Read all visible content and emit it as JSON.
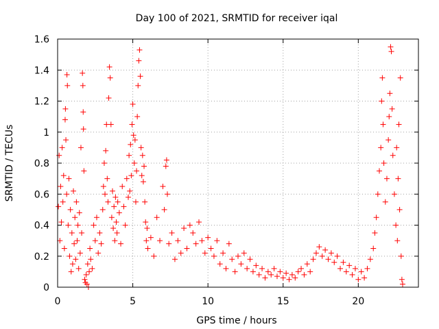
{
  "chart_data": {
    "type": "scatter",
    "title": "Day 100 of 2021, SRMTID for receiver iqal",
    "xlabel": "GPS time / hours",
    "ylabel": "SRMTID / TECUs",
    "xlim": [
      0,
      24
    ],
    "ylim": [
      0,
      1.6
    ],
    "xticks": [
      "0",
      "5",
      "10",
      "15",
      "20"
    ],
    "yticks": [
      "0",
      "0.2",
      "0.4",
      "0.6",
      "0.8",
      "1",
      "1.2",
      "1.4",
      "1.6"
    ],
    "grid": true,
    "marker": "+",
    "color": "#ff0000",
    "series": [
      {
        "name": "SRMTID",
        "points": [
          [
            0.05,
            0.52
          ],
          [
            0.1,
            0.85
          ],
          [
            0.15,
            0.3
          ],
          [
            0.2,
            0.65
          ],
          [
            0.25,
            0.42
          ],
          [
            0.3,
            0.9
          ],
          [
            0.35,
            0.55
          ],
          [
            0.4,
            0.72
          ],
          [
            0.45,
            0.25
          ],
          [
            0.5,
            1.08
          ],
          [
            0.52,
            1.15
          ],
          [
            0.55,
            0.95
          ],
          [
            0.6,
            0.6
          ],
          [
            0.62,
            1.37
          ],
          [
            0.65,
            1.3
          ],
          [
            0.7,
            0.4
          ],
          [
            0.75,
            0.7
          ],
          [
            0.8,
            0.2
          ],
          [
            0.85,
            0.5
          ],
          [
            0.9,
            0.1
          ],
          [
            0.95,
            0.35
          ],
          [
            1.0,
            0.15
          ],
          [
            1.05,
            0.62
          ],
          [
            1.1,
            0.28
          ],
          [
            1.15,
            0.45
          ],
          [
            1.2,
            0.18
          ],
          [
            1.25,
            0.55
          ],
          [
            1.3,
            0.3
          ],
          [
            1.35,
            0.4
          ],
          [
            1.4,
            0.12
          ],
          [
            1.45,
            0.48
          ],
          [
            1.5,
            0.22
          ],
          [
            1.55,
            0.9
          ],
          [
            1.6,
            0.35
          ],
          [
            1.65,
            1.38
          ],
          [
            1.68,
            1.3
          ],
          [
            1.7,
            1.13
          ],
          [
            1.72,
            1.02
          ],
          [
            1.75,
            0.75
          ],
          [
            1.8,
            0.05
          ],
          [
            1.85,
            0.03
          ],
          [
            1.9,
            0.08
          ],
          [
            1.95,
            0.02
          ],
          [
            2.0,
            0.15
          ],
          [
            2.05,
            0.0
          ],
          [
            2.1,
            0.1
          ],
          [
            2.15,
            0.25
          ],
          [
            2.2,
            0.18
          ],
          [
            2.3,
            0.12
          ],
          [
            2.4,
            0.4
          ],
          [
            2.5,
            0.3
          ],
          [
            2.6,
            0.45
          ],
          [
            2.7,
            0.22
          ],
          [
            2.8,
            0.35
          ],
          [
            2.9,
            0.28
          ],
          [
            3.0,
            0.5
          ],
          [
            3.05,
            0.65
          ],
          [
            3.1,
            0.8
          ],
          [
            3.15,
            0.6
          ],
          [
            3.2,
            0.88
          ],
          [
            3.25,
            1.05
          ],
          [
            3.3,
            0.7
          ],
          [
            3.35,
            0.55
          ],
          [
            3.4,
            1.22
          ],
          [
            3.45,
            1.42
          ],
          [
            3.5,
            1.35
          ],
          [
            3.55,
            1.05
          ],
          [
            3.6,
            0.45
          ],
          [
            3.65,
            0.62
          ],
          [
            3.7,
            0.38
          ],
          [
            3.75,
            0.52
          ],
          [
            3.8,
            0.3
          ],
          [
            3.85,
            0.58
          ],
          [
            3.9,
            0.42
          ],
          [
            3.95,
            0.35
          ],
          [
            4.0,
            0.55
          ],
          [
            4.1,
            0.48
          ],
          [
            4.2,
            0.28
          ],
          [
            4.3,
            0.65
          ],
          [
            4.4,
            0.52
          ],
          [
            4.5,
            0.4
          ],
          [
            4.6,
            0.7
          ],
          [
            4.7,
            0.58
          ],
          [
            4.75,
            0.85
          ],
          [
            4.8,
            0.62
          ],
          [
            4.85,
            0.92
          ],
          [
            4.9,
            0.72
          ],
          [
            4.95,
            1.05
          ],
          [
            5.0,
            1.18
          ],
          [
            5.05,
            0.98
          ],
          [
            5.1,
            0.8
          ],
          [
            5.15,
            0.95
          ],
          [
            5.2,
            0.55
          ],
          [
            5.25,
            0.75
          ],
          [
            5.3,
            1.1
          ],
          [
            5.35,
            1.3
          ],
          [
            5.4,
            1.46
          ],
          [
            5.45,
            1.53
          ],
          [
            5.5,
            1.36
          ],
          [
            5.55,
            0.9
          ],
          [
            5.6,
            0.72
          ],
          [
            5.65,
            0.85
          ],
          [
            5.7,
            0.68
          ],
          [
            5.75,
            0.78
          ],
          [
            5.8,
            0.55
          ],
          [
            5.85,
            0.42
          ],
          [
            5.9,
            0.3
          ],
          [
            5.95,
            0.38
          ],
          [
            6.0,
            0.25
          ],
          [
            6.2,
            0.32
          ],
          [
            6.4,
            0.2
          ],
          [
            6.6,
            0.45
          ],
          [
            6.8,
            0.3
          ],
          [
            7.0,
            0.65
          ],
          [
            7.1,
            0.5
          ],
          [
            7.2,
            0.78
          ],
          [
            7.25,
            0.82
          ],
          [
            7.3,
            0.6
          ],
          [
            7.4,
            0.28
          ],
          [
            7.6,
            0.35
          ],
          [
            7.8,
            0.18
          ],
          [
            8.0,
            0.3
          ],
          [
            8.2,
            0.22
          ],
          [
            8.4,
            0.38
          ],
          [
            8.6,
            0.25
          ],
          [
            8.8,
            0.4
          ],
          [
            9.0,
            0.35
          ],
          [
            9.2,
            0.28
          ],
          [
            9.4,
            0.42
          ],
          [
            9.6,
            0.3
          ],
          [
            9.8,
            0.22
          ],
          [
            10.0,
            0.32
          ],
          [
            10.2,
            0.25
          ],
          [
            10.4,
            0.2
          ],
          [
            10.6,
            0.3
          ],
          [
            10.8,
            0.15
          ],
          [
            11.0,
            0.22
          ],
          [
            11.2,
            0.12
          ],
          [
            11.4,
            0.28
          ],
          [
            11.6,
            0.18
          ],
          [
            11.8,
            0.1
          ],
          [
            12.0,
            0.2
          ],
          [
            12.2,
            0.15
          ],
          [
            12.4,
            0.22
          ],
          [
            12.6,
            0.12
          ],
          [
            12.8,
            0.18
          ],
          [
            13.0,
            0.1
          ],
          [
            13.2,
            0.14
          ],
          [
            13.4,
            0.08
          ],
          [
            13.6,
            0.12
          ],
          [
            13.8,
            0.06
          ],
          [
            14.0,
            0.1
          ],
          [
            14.2,
            0.08
          ],
          [
            14.4,
            0.12
          ],
          [
            14.6,
            0.07
          ],
          [
            14.8,
            0.1
          ],
          [
            15.0,
            0.06
          ],
          [
            15.2,
            0.09
          ],
          [
            15.4,
            0.05
          ],
          [
            15.6,
            0.08
          ],
          [
            15.8,
            0.06
          ],
          [
            16.0,
            0.1
          ],
          [
            16.2,
            0.12
          ],
          [
            16.4,
            0.08
          ],
          [
            16.6,
            0.15
          ],
          [
            16.8,
            0.1
          ],
          [
            17.0,
            0.18
          ],
          [
            17.2,
            0.22
          ],
          [
            17.4,
            0.26
          ],
          [
            17.6,
            0.2
          ],
          [
            17.8,
            0.24
          ],
          [
            18.0,
            0.18
          ],
          [
            18.2,
            0.22
          ],
          [
            18.4,
            0.16
          ],
          [
            18.6,
            0.2
          ],
          [
            18.8,
            0.12
          ],
          [
            19.0,
            0.16
          ],
          [
            19.2,
            0.1
          ],
          [
            19.4,
            0.14
          ],
          [
            19.6,
            0.08
          ],
          [
            19.8,
            0.12
          ],
          [
            20.0,
            0.05
          ],
          [
            20.2,
            0.1
          ],
          [
            20.4,
            0.06
          ],
          [
            20.6,
            0.12
          ],
          [
            20.8,
            0.18
          ],
          [
            21.0,
            0.25
          ],
          [
            21.1,
            0.35
          ],
          [
            21.2,
            0.45
          ],
          [
            21.3,
            0.6
          ],
          [
            21.4,
            0.75
          ],
          [
            21.5,
            0.9
          ],
          [
            21.55,
            1.2
          ],
          [
            21.6,
            1.35
          ],
          [
            21.65,
            1.05
          ],
          [
            21.7,
            0.8
          ],
          [
            21.8,
            0.55
          ],
          [
            21.9,
            0.7
          ],
          [
            22.0,
            0.95
          ],
          [
            22.05,
            1.1
          ],
          [
            22.1,
            1.25
          ],
          [
            22.15,
            1.55
          ],
          [
            22.2,
            1.52
          ],
          [
            22.25,
            1.15
          ],
          [
            22.3,
            0.85
          ],
          [
            22.4,
            0.6
          ],
          [
            22.5,
            0.4
          ],
          [
            22.55,
            0.9
          ],
          [
            22.6,
            0.3
          ],
          [
            22.65,
            0.7
          ],
          [
            22.7,
            1.05
          ],
          [
            22.75,
            0.5
          ],
          [
            22.8,
            1.35
          ],
          [
            22.85,
            0.2
          ],
          [
            22.9,
            0.05
          ],
          [
            22.95,
            0.02
          ]
        ]
      }
    ]
  }
}
